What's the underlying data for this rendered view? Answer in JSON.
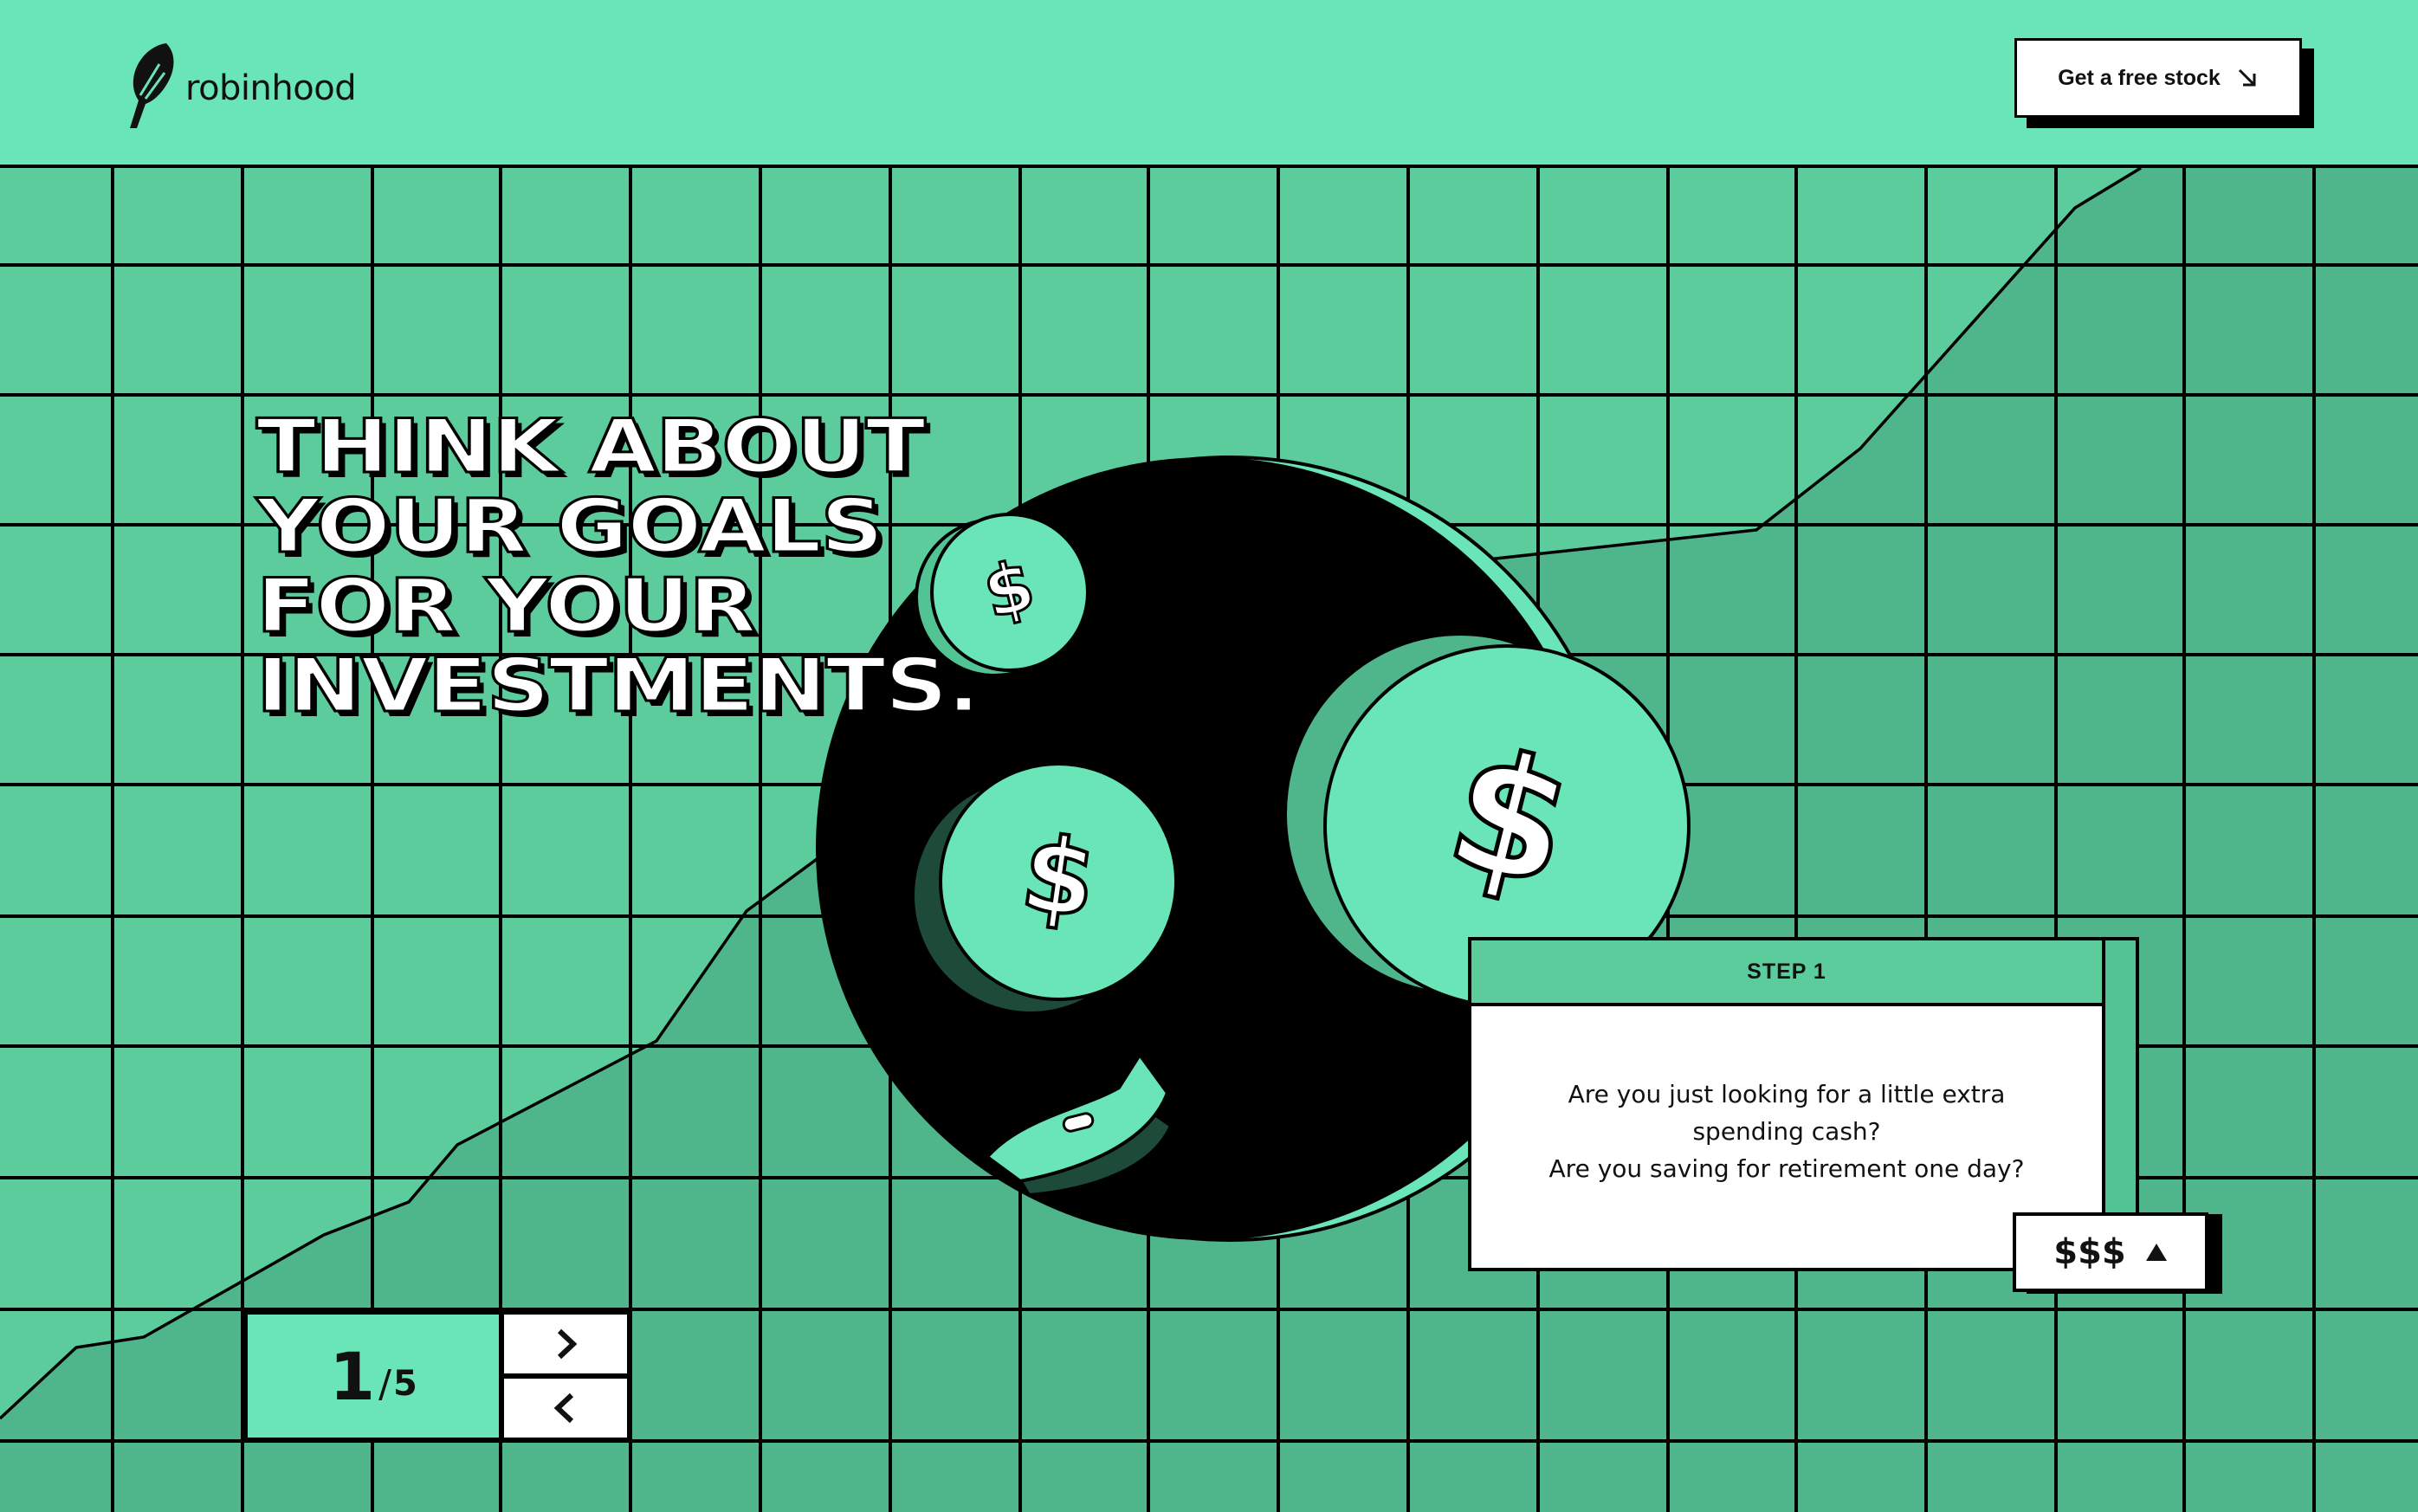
{
  "header": {
    "logo_text": "robinhood",
    "cta_label": "Get a free stock",
    "cta_icon": "arrow-down-right-icon"
  },
  "hero": {
    "headline_lines": [
      "THINK ABOUT",
      "YOUR GOALS",
      "FOR YOUR",
      "INVESTMENTS."
    ],
    "coin_symbol": "$"
  },
  "step_card": {
    "title": "STEP 1",
    "body_lines": [
      "Are you just looking for a little extra",
      "spending cash?",
      "Are you saving for retirement one day?"
    ],
    "tag_label": "$$$",
    "tag_icon": "triangle-up-icon"
  },
  "pager": {
    "current": "1",
    "separator": "/",
    "total": "5",
    "next_icon": "chevron-right-icon",
    "prev_icon": "chevron-left-icon"
  },
  "colors": {
    "mint": "#69e5b7",
    "grid_green": "#5ccc9d",
    "area_green": "#4fb68b",
    "dark_green": "#1e4a3a",
    "black": "#000000",
    "white": "#ffffff"
  }
}
